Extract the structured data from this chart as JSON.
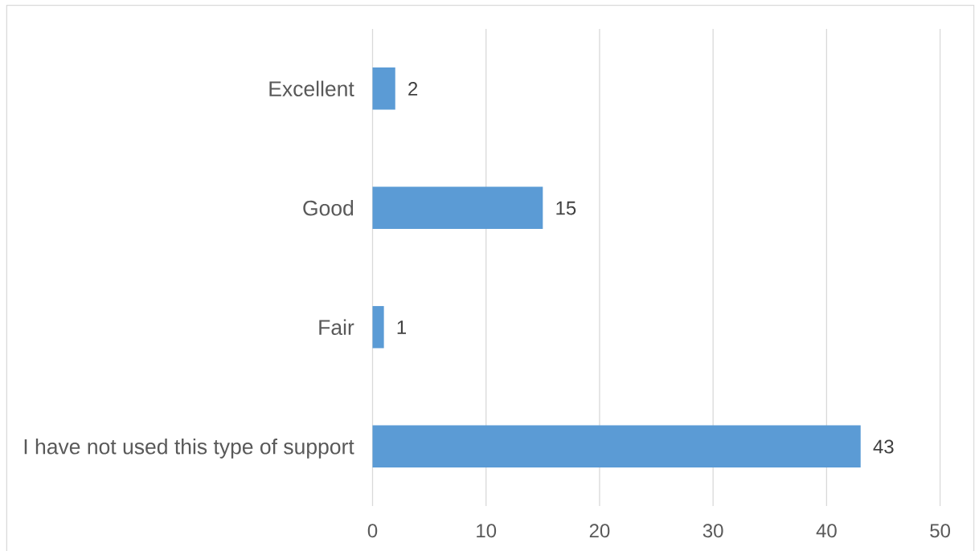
{
  "chart_data": {
    "type": "bar",
    "orientation": "horizontal",
    "categories": [
      "Excellent",
      "Good",
      "Fair",
      "I have not used this type of support"
    ],
    "values": [
      2,
      15,
      1,
      43
    ],
    "color": "#5b9bd5",
    "xlim": [
      0,
      50
    ],
    "xticks": [
      0,
      10,
      20,
      30,
      40,
      50
    ],
    "grid": "x",
    "data_labels": true
  }
}
